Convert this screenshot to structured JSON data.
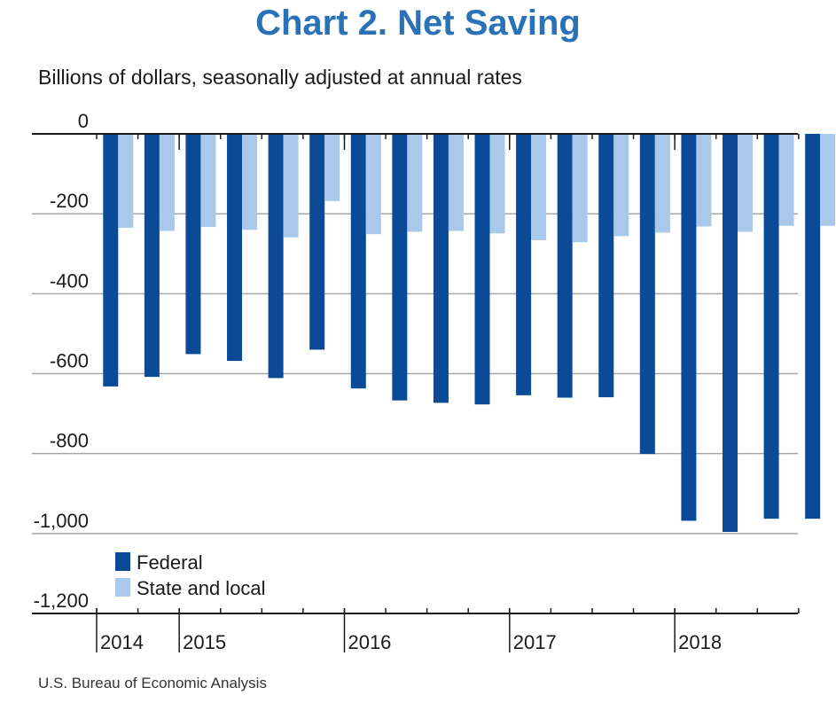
{
  "title": "Chart 2. Net Saving",
  "subtitle": "Billions of dollars, seasonally adjusted at annual rates",
  "source": "U.S. Bureau of Economic Analysis",
  "chart_data": {
    "type": "bar",
    "ylim": [
      -1200,
      0
    ],
    "yticks": [
      0,
      -200,
      -400,
      -600,
      -800,
      -1000,
      -1200
    ],
    "ytick_labels": [
      "0",
      "-200",
      "-400",
      "-600",
      "-800",
      "-1,000",
      "-1,200"
    ],
    "grid": true,
    "legend_position": "bottom-left",
    "categories": [
      "2014 Q2",
      "2014 Q3",
      "2014 Q4",
      "2015 Q1",
      "2015 Q2",
      "2015 Q3",
      "2015 Q4",
      "2016 Q1",
      "2016 Q2",
      "2016 Q3",
      "2016 Q4",
      "2017 Q1",
      "2017 Q2",
      "2017 Q3",
      "2017 Q4",
      "2018 Q1",
      "2018 Q2",
      "2018 Q3"
    ],
    "years": [
      {
        "label": "2014",
        "start": 0,
        "end": 2
      },
      {
        "label": "2015",
        "start": 2,
        "end": 6
      },
      {
        "label": "2016",
        "start": 6,
        "end": 10
      },
      {
        "label": "2017",
        "start": 10,
        "end": 14
      },
      {
        "label": "2018",
        "start": 14,
        "end": 18
      }
    ],
    "series": [
      {
        "name": "Federal",
        "color": "#0b4a96",
        "values": [
          -632,
          -608,
          -551,
          -568,
          -611,
          -540,
          -637,
          -667,
          -673,
          -677,
          -654,
          -660,
          -659,
          -801,
          -968,
          -996,
          -963,
          -963
        ]
      },
      {
        "name": "State and local",
        "color": "#aac9ea",
        "values": [
          -235,
          -243,
          -233,
          -240,
          -259,
          -168,
          -251,
          -245,
          -243,
          -249,
          -266,
          -271,
          -256,
          -247,
          -232,
          -245,
          -230,
          -230
        ]
      }
    ]
  }
}
